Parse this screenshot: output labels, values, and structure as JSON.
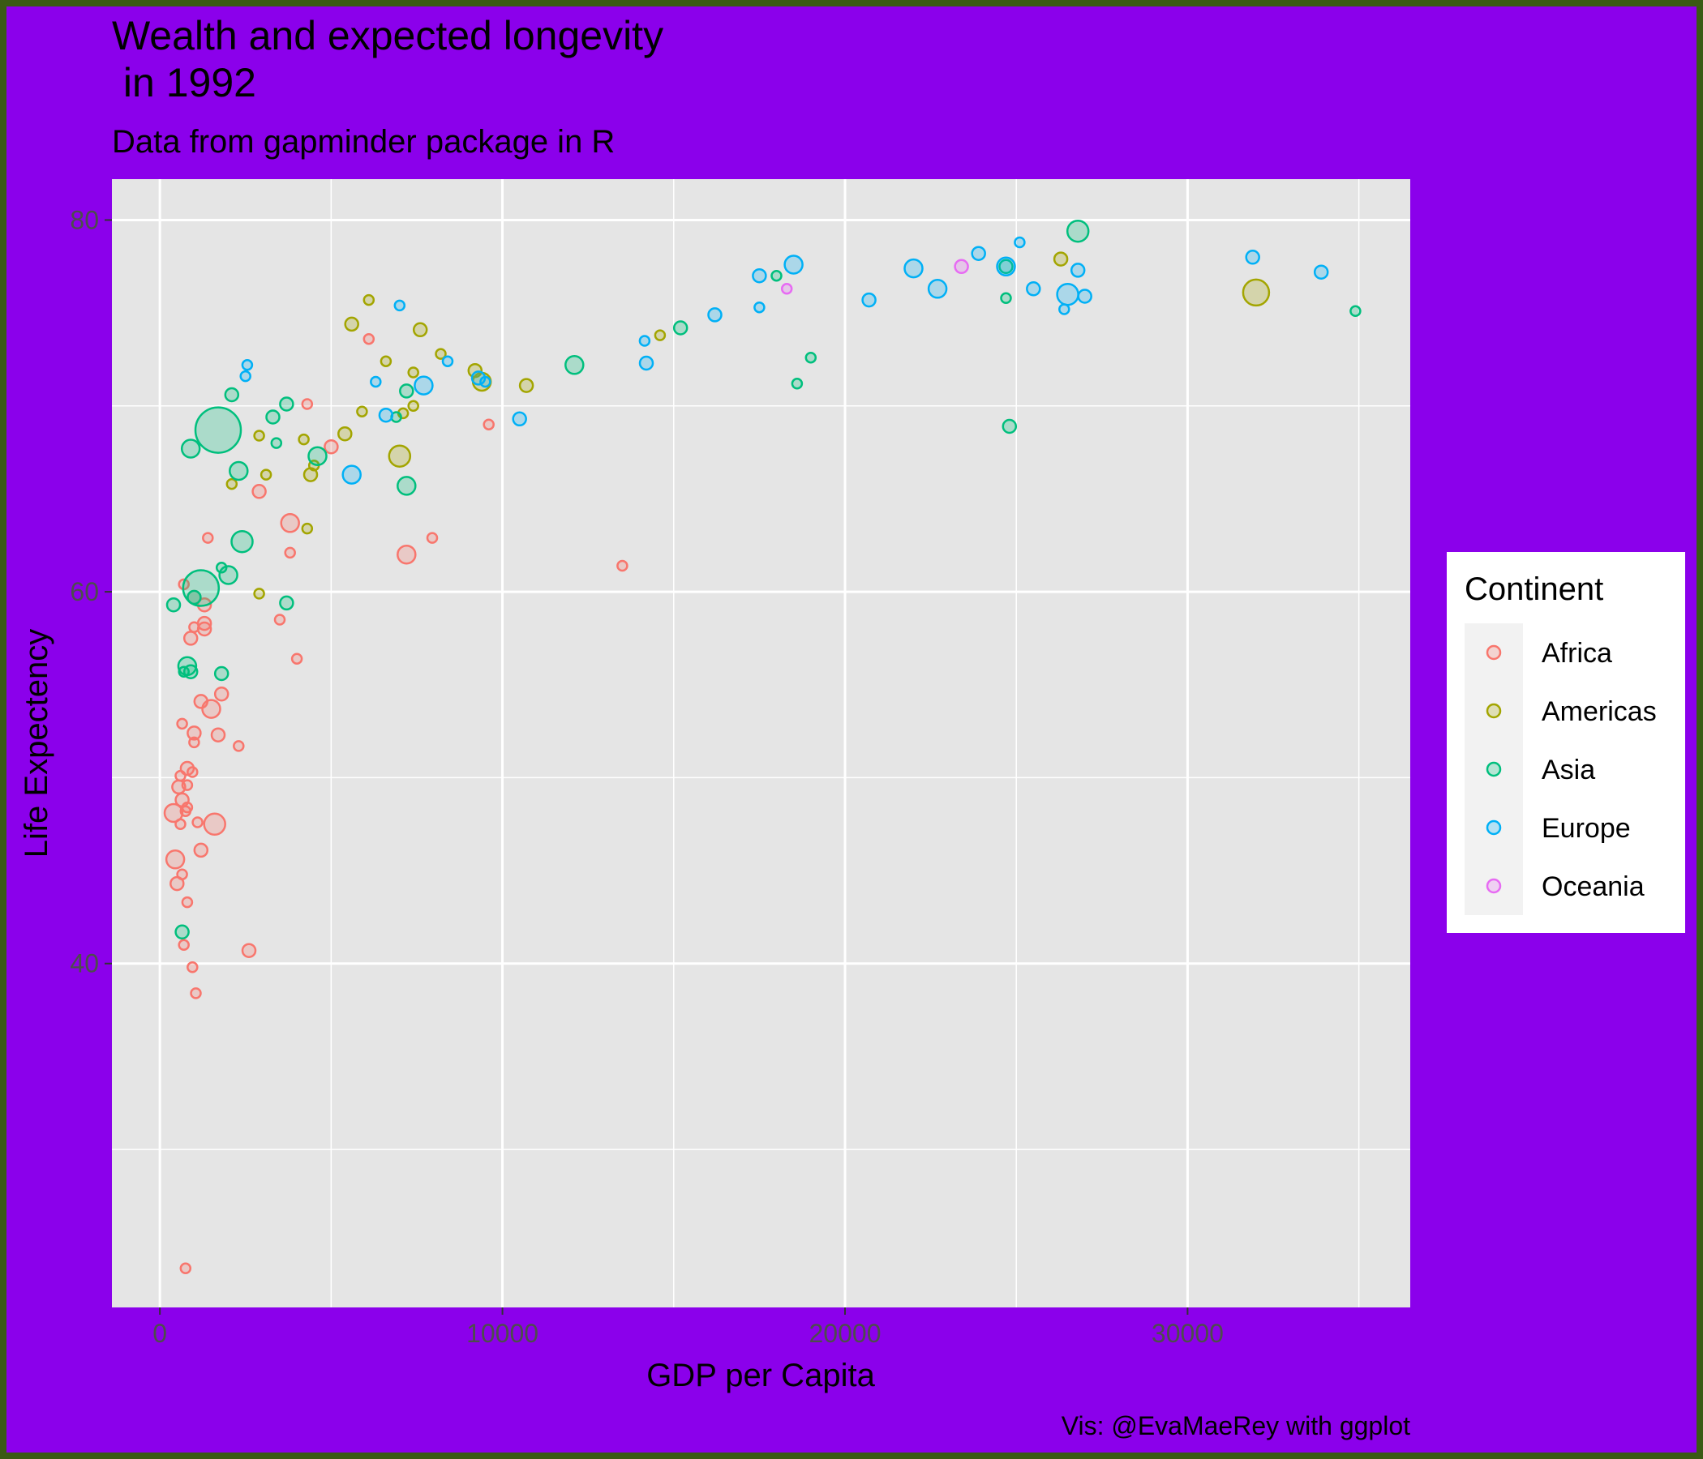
{
  "chart_data": {
    "type": "scatter",
    "title_line1": "Wealth and expected longevity",
    "title_line2": " in 1992",
    "subtitle": "Data from gapminder package in R",
    "xlabel": "GDP per Capita",
    "ylabel": "Life Expectency",
    "caption": "Vis: @EvaMaeRey with ggplot",
    "xlim": [
      -1400,
      36500
    ],
    "ylim": [
      21.5,
      82.2
    ],
    "x_ticks": [
      0,
      10000,
      20000,
      30000
    ],
    "x_tick_labels": [
      "0",
      "10000",
      "20000",
      "30000"
    ],
    "y_ticks": [
      40,
      60,
      80
    ],
    "y_tick_labels": [
      "40",
      "60",
      "80"
    ],
    "grid": true,
    "legend": {
      "title": "Continent",
      "position": "right",
      "entries": [
        "Africa",
        "Americas",
        "Asia",
        "Europe",
        "Oceania"
      ]
    },
    "colors": {
      "Africa": "#F8766D",
      "Americas": "#A3A500",
      "Asia": "#00BF7D",
      "Europe": "#00B0F6",
      "Oceania": "#E76BF3",
      "panel_background": "#E5E5E5",
      "page_background": "#8B00EB",
      "frame": "#3A5A14",
      "grid": "#FFFFFF"
    },
    "size_variable_note_hidden": false,
    "series": [
      {
        "name": "Africa",
        "points": [
          [
            750,
            23.6,
            1
          ],
          [
            700,
            41.0,
            1
          ],
          [
            950,
            39.8,
            1
          ],
          [
            1050,
            38.4,
            1
          ],
          [
            2600,
            40.7,
            2
          ],
          [
            800,
            43.3,
            1
          ],
          [
            500,
            44.3,
            2
          ],
          [
            650,
            44.8,
            1
          ],
          [
            450,
            45.6,
            3
          ],
          [
            1200,
            46.1,
            2
          ],
          [
            600,
            47.5,
            1
          ],
          [
            1100,
            47.6,
            1
          ],
          [
            1600,
            47.5,
            4
          ],
          [
            400,
            48.1,
            3
          ],
          [
            800,
            48.4,
            1
          ],
          [
            750,
            48.2,
            1
          ],
          [
            650,
            48.8,
            2
          ],
          [
            550,
            49.5,
            2
          ],
          [
            800,
            49.6,
            1
          ],
          [
            600,
            50.1,
            1
          ],
          [
            950,
            50.3,
            1
          ],
          [
            800,
            50.5,
            2
          ],
          [
            2300,
            51.7,
            1
          ],
          [
            1000,
            51.9,
            1
          ],
          [
            1700,
            52.3,
            2
          ],
          [
            1000,
            52.4,
            2
          ],
          [
            650,
            52.9,
            1
          ],
          [
            1500,
            53.7,
            3
          ],
          [
            1200,
            54.1,
            2
          ],
          [
            1800,
            54.5,
            2
          ],
          [
            4000,
            56.4,
            1
          ],
          [
            3500,
            58.5,
            1
          ],
          [
            900,
            57.5,
            2
          ],
          [
            1300,
            58.0,
            2
          ],
          [
            1300,
            58.3,
            2
          ],
          [
            1000,
            58.1,
            1
          ],
          [
            1300,
            59.3,
            2
          ],
          [
            1000,
            59.7,
            2
          ],
          [
            700,
            60.4,
            1
          ],
          [
            7200,
            62.0,
            3
          ],
          [
            3800,
            62.1,
            1
          ],
          [
            7950,
            62.9,
            1
          ],
          [
            13500,
            61.4,
            1
          ],
          [
            1400,
            62.9,
            1
          ],
          [
            3800,
            63.7,
            3
          ],
          [
            2900,
            65.4,
            2
          ],
          [
            5000,
            67.8,
            2
          ],
          [
            9600,
            69.0,
            1
          ],
          [
            4300,
            70.1,
            1
          ],
          [
            6100,
            73.6,
            1
          ]
        ]
      },
      {
        "name": "Americas",
        "points": [
          [
            2900,
            59.9,
            1
          ],
          [
            4300,
            63.4,
            1
          ],
          [
            2100,
            65.8,
            1
          ],
          [
            3100,
            66.3,
            1
          ],
          [
            4400,
            66.3,
            2
          ],
          [
            4500,
            66.8,
            1
          ],
          [
            7000,
            67.3,
            4
          ],
          [
            2900,
            68.4,
            1
          ],
          [
            4200,
            68.2,
            1
          ],
          [
            5400,
            68.5,
            2
          ],
          [
            5900,
            69.7,
            1
          ],
          [
            7100,
            69.6,
            1
          ],
          [
            7400,
            70.0,
            1
          ],
          [
            9400,
            71.3,
            3
          ],
          [
            9200,
            71.9,
            2
          ],
          [
            10700,
            71.1,
            2
          ],
          [
            7400,
            71.8,
            1
          ],
          [
            6600,
            72.4,
            1
          ],
          [
            8200,
            72.8,
            1
          ],
          [
            14600,
            73.8,
            1
          ],
          [
            7600,
            74.1,
            2
          ],
          [
            5600,
            74.4,
            2
          ],
          [
            6100,
            75.7,
            1
          ],
          [
            32000,
            76.1,
            6
          ],
          [
            26300,
            77.9,
            2
          ]
        ]
      },
      {
        "name": "Asia",
        "points": [
          [
            650,
            41.7,
            2
          ],
          [
            400,
            59.3,
            2
          ],
          [
            1200,
            60.2,
            7
          ],
          [
            1000,
            59.7,
            2
          ],
          [
            1800,
            61.3,
            1
          ],
          [
            2000,
            60.9,
            3
          ],
          [
            2400,
            62.7,
            4
          ],
          [
            3700,
            59.4,
            2
          ],
          [
            800,
            56.0,
            3
          ],
          [
            700,
            55.7,
            1
          ],
          [
            900,
            55.7,
            2
          ],
          [
            1800,
            55.6,
            2
          ],
          [
            900,
            67.7,
            3
          ],
          [
            1700,
            68.7,
            8
          ],
          [
            2300,
            66.5,
            3
          ],
          [
            3300,
            69.4,
            2
          ],
          [
            3400,
            68.0,
            1
          ],
          [
            3700,
            70.1,
            2
          ],
          [
            2100,
            70.6,
            2
          ],
          [
            4600,
            67.3,
            3
          ],
          [
            7200,
            65.7,
            3
          ],
          [
            7200,
            70.8,
            2
          ],
          [
            6900,
            69.4,
            1
          ],
          [
            12100,
            72.2,
            3
          ],
          [
            15200,
            74.2,
            2
          ],
          [
            18600,
            71.2,
            1
          ],
          [
            19000,
            72.6,
            1
          ],
          [
            18000,
            77.0,
            1
          ],
          [
            24700,
            75.8,
            1
          ],
          [
            24700,
            77.5,
            2
          ],
          [
            24800,
            68.9,
            2
          ],
          [
            26800,
            79.4,
            4
          ],
          [
            34900,
            75.1,
            1
          ]
        ]
      },
      {
        "name": "Europe",
        "points": [
          [
            2500,
            71.6,
            1
          ],
          [
            2550,
            72.2,
            1
          ],
          [
            5600,
            66.3,
            3
          ],
          [
            6300,
            71.3,
            1
          ],
          [
            6600,
            69.5,
            2
          ],
          [
            7000,
            75.4,
            1
          ],
          [
            7700,
            71.1,
            3
          ],
          [
            8400,
            72.4,
            1
          ],
          [
            9300,
            71.5,
            2
          ],
          [
            9500,
            71.3,
            1
          ],
          [
            10500,
            69.3,
            2
          ],
          [
            14200,
            72.3,
            2
          ],
          [
            14150,
            73.5,
            1
          ],
          [
            16200,
            74.9,
            2
          ],
          [
            17500,
            75.3,
            1
          ],
          [
            17500,
            77.0,
            2
          ],
          [
            18500,
            77.6,
            3
          ],
          [
            20700,
            75.7,
            2
          ],
          [
            22000,
            77.4,
            3
          ],
          [
            22700,
            76.3,
            3
          ],
          [
            23900,
            78.2,
            2
          ],
          [
            24700,
            77.5,
            3
          ],
          [
            25100,
            78.8,
            1
          ],
          [
            25500,
            76.3,
            2
          ],
          [
            26400,
            75.2,
            1
          ],
          [
            26500,
            76.0,
            4
          ],
          [
            26800,
            77.3,
            2
          ],
          [
            27000,
            75.9,
            2
          ],
          [
            31900,
            78.0,
            2
          ],
          [
            33900,
            77.2,
            2
          ]
        ]
      },
      {
        "name": "Oceania",
        "points": [
          [
            18300,
            76.3,
            1
          ],
          [
            23400,
            77.5,
            2
          ]
        ]
      }
    ]
  }
}
